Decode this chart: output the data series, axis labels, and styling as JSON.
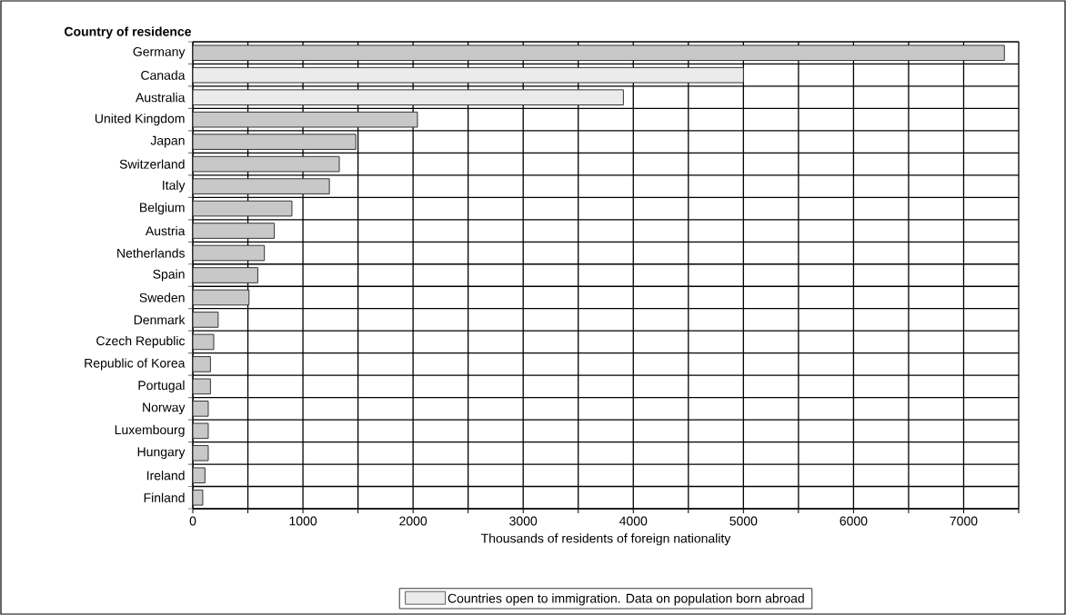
{
  "chart_data": {
    "type": "bar",
    "orientation": "horizontal",
    "ylabel": "Country of residence",
    "xlabel": "Thousands of residents of foreign nationality",
    "categories": [
      "Germany",
      "Canada",
      "Australia",
      "United  Kingdom",
      "Japan",
      "Switzerland",
      "Italy",
      "Belgium",
      "Austria",
      "Netherlands",
      "Spain",
      "Sweden",
      "Denmark",
      "Czech Republic",
      "Republic of Korea",
      "Portugal",
      "Norway",
      "Luxembourg",
      "Hungary",
      "Ireland",
      "Finland"
    ],
    "series": [
      {
        "color": "#c8c8c8",
        "values": [
          7370,
          null,
          null,
          2040,
          1480,
          1330,
          1240,
          900,
          740,
          650,
          590,
          510,
          230,
          190,
          160,
          160,
          140,
          140,
          140,
          110,
          90
        ]
      },
      {
        "name": "Countries open to immigration.  Data on population born abroad",
        "color": "#ebebeb",
        "values": [
          null,
          5000,
          3910,
          null,
          null,
          null,
          null,
          null,
          null,
          null,
          null,
          null,
          null,
          null,
          null,
          null,
          null,
          null,
          null,
          null,
          null
        ]
      }
    ],
    "xlim": [
      0,
      7500
    ],
    "xticks": [
      0,
      {
        "value": 500,
        "label": null
      },
      1000,
      {
        "value": 1500,
        "label": null
      },
      2000,
      {
        "value": 2500,
        "label": null
      },
      3000,
      {
        "value": 3500,
        "label": null
      },
      4000,
      {
        "value": 4500,
        "label": null
      },
      5000,
      {
        "value": 5500,
        "label": null
      },
      6000,
      {
        "value": 6500,
        "label": null
      },
      7000,
      {
        "value": 7500,
        "label": null
      }
    ],
    "grid": true,
    "legend": "bottom"
  }
}
